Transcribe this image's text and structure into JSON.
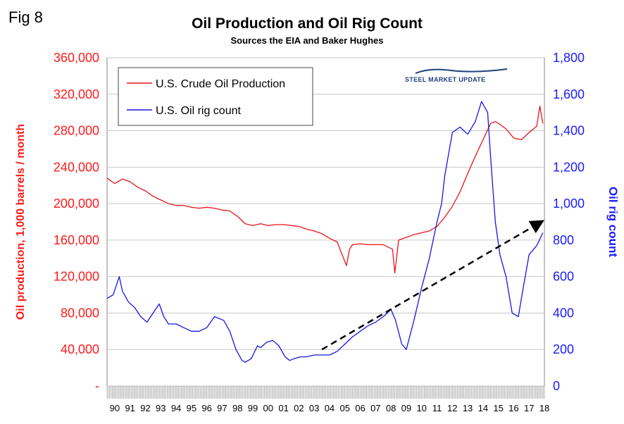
{
  "figure_label": "Fig 8",
  "logo": {
    "text": "STEEL MARKET UPDATE"
  },
  "chart_data": {
    "type": "line",
    "title": "Oil Production and Oil Rig Count",
    "subtitle": "Sources the EIA and Baker Hughes",
    "xlabel": "",
    "ylabel_left": "Oil production, 1,000 barrels / month",
    "ylabel_right": "Oil rig count",
    "x_range": [
      1990,
      2018.5
    ],
    "x_tick_labels": [
      "90",
      "91",
      "92",
      "93",
      "94",
      "95",
      "96",
      "97",
      "98",
      "99",
      "00",
      "01",
      "02",
      "03",
      "04",
      "05",
      "06",
      "07",
      "08",
      "09",
      "10",
      "11",
      "12",
      "13",
      "14",
      "15",
      "16",
      "17",
      "18"
    ],
    "ylim_left": [
      0,
      360000
    ],
    "ylim_right": [
      0,
      1800
    ],
    "yticks_left": [
      "-",
      "40,000",
      "80,000",
      "120,000",
      "160,000",
      "200,000",
      "240,000",
      "280,000",
      "320,000",
      "360,000"
    ],
    "yticks_right": [
      "0",
      "200",
      "400",
      "600",
      "800",
      "1,000",
      "1,200",
      "1,400",
      "1,600",
      "1,800"
    ],
    "legend_position": "top-left",
    "colors": {
      "production": "#e8141a",
      "rigs": "#1616e6",
      "trend": "#000000",
      "left_axis_text": "#ff1a1a",
      "right_axis_text": "#1a1aff"
    },
    "series": [
      {
        "name": "U.S. Crude Oil Production",
        "axis": "left",
        "x": [
          1990.0,
          1990.5,
          1991.0,
          1991.5,
          1992.0,
          1992.5,
          1993.0,
          1993.5,
          1994.0,
          1994.5,
          1995.0,
          1995.5,
          1996.0,
          1996.5,
          1997.0,
          1997.5,
          1998.0,
          1998.5,
          1999.0,
          1999.5,
          2000.0,
          2000.5,
          2001.0,
          2001.5,
          2002.0,
          2002.5,
          2003.0,
          2003.5,
          2004.0,
          2004.5,
          2005.0,
          2005.6,
          2005.8,
          2006.0,
          2006.5,
          2007.0,
          2007.5,
          2008.0,
          2008.6,
          2008.75,
          2009.0,
          2009.5,
          2010.0,
          2010.5,
          2011.0,
          2011.5,
          2012.0,
          2012.5,
          2013.0,
          2013.5,
          2014.0,
          2014.5,
          2015.0,
          2015.3,
          2015.6,
          2016.0,
          2016.5,
          2017.0,
          2017.5,
          2018.0,
          2018.2,
          2018.4
        ],
        "values": [
          228000,
          222000,
          227000,
          224000,
          218000,
          214000,
          208000,
          204000,
          200000,
          198000,
          198000,
          196000,
          195000,
          196000,
          195000,
          193000,
          192000,
          186000,
          178000,
          176000,
          178000,
          176000,
          177000,
          177000,
          176000,
          175000,
          172000,
          170000,
          167000,
          162000,
          158000,
          132000,
          150000,
          155000,
          156000,
          155000,
          155000,
          155000,
          150000,
          124000,
          160000,
          163000,
          166000,
          168000,
          170000,
          175000,
          185000,
          197000,
          213000,
          233000,
          252000,
          270000,
          288000,
          290000,
          287000,
          282000,
          272000,
          270000,
          278000,
          285000,
          307000,
          288000
        ]
      },
      {
        "name": "U.S. Oil rig count",
        "axis": "right",
        "x": [
          1990.0,
          1990.4,
          1990.8,
          1991.0,
          1991.4,
          1991.8,
          1992.2,
          1992.6,
          1993.0,
          1993.4,
          1993.7,
          1994.0,
          1994.5,
          1995.0,
          1995.5,
          1996.0,
          1996.5,
          1997.0,
          1997.6,
          1998.0,
          1998.4,
          1998.8,
          1999.0,
          1999.4,
          1999.8,
          2000.0,
          2000.4,
          2000.8,
          2001.2,
          2001.6,
          2001.9,
          2002.2,
          2002.6,
          2003.0,
          2003.5,
          2004.0,
          2004.5,
          2005.0,
          2005.5,
          2006.0,
          2006.5,
          2007.0,
          2007.5,
          2008.0,
          2008.5,
          2008.8,
          2009.2,
          2009.5,
          2010.0,
          2010.5,
          2011.0,
          2011.5,
          2011.8,
          2012.0,
          2012.5,
          2013.0,
          2013.5,
          2014.0,
          2014.4,
          2014.8,
          2015.0,
          2015.3,
          2015.6,
          2016.0,
          2016.4,
          2016.8,
          2017.0,
          2017.5,
          2018.0,
          2018.4
        ],
        "values": [
          480,
          500,
          600,
          520,
          460,
          430,
          380,
          350,
          400,
          450,
          380,
          340,
          340,
          320,
          300,
          300,
          320,
          380,
          360,
          300,
          200,
          140,
          130,
          150,
          220,
          210,
          240,
          250,
          220,
          160,
          140,
          150,
          160,
          160,
          170,
          170,
          170,
          190,
          230,
          270,
          300,
          330,
          350,
          380,
          420,
          360,
          230,
          200,
          360,
          540,
          700,
          900,
          1000,
          1150,
          1390,
          1420,
          1380,
          1450,
          1560,
          1500,
          1250,
          900,
          720,
          600,
          400,
          380,
          480,
          720,
          770,
          840
        ]
      },
      {
        "name": "Trend",
        "axis": "right",
        "style": "dashed-arrow",
        "x": [
          2004.0,
          2018.3
        ],
        "values": [
          200,
          900
        ]
      }
    ]
  }
}
